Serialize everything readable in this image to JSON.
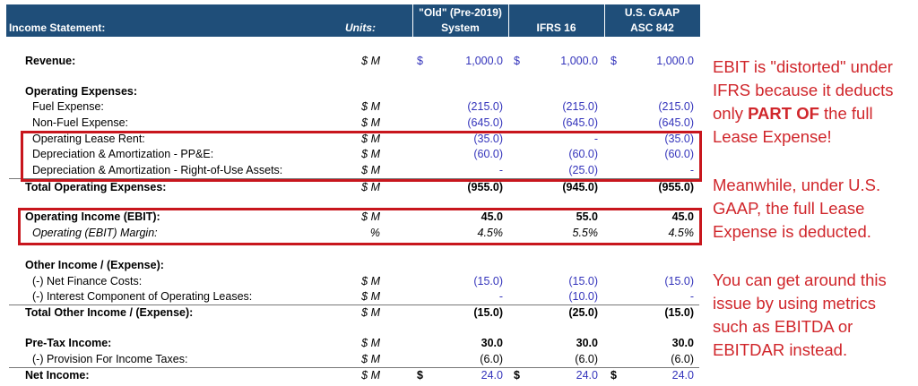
{
  "header": {
    "title": "Income Statement:",
    "units": "Units:",
    "col1_line1": "\"Old\" (Pre-2019)",
    "col1_line2": "System",
    "col2": "IFRS 16",
    "col3_line1": "U.S. GAAP",
    "col3_line2": "ASC 842"
  },
  "rows": [
    {
      "label": "Revenue:",
      "units": "$ M",
      "values": [
        "1,000.0",
        "1,000.0",
        "1,000.0"
      ],
      "currency": "$",
      "style": "rev"
    },
    {
      "label": "Operating Expenses:",
      "style": "head"
    },
    {
      "label": "Fuel Expense:",
      "units": "$ M",
      "values": [
        "(215.0)",
        "(215.0)",
        "(215.0)"
      ],
      "style": "item"
    },
    {
      "label": "Non-Fuel Expense:",
      "units": "$ M",
      "values": [
        "(645.0)",
        "(645.0)",
        "(645.0)"
      ],
      "style": "item"
    },
    {
      "label": "Operating Lease Rent:",
      "units": "$ M",
      "values": [
        "(35.0)",
        "-",
        "(35.0)"
      ],
      "style": "item"
    },
    {
      "label": "Depreciation & Amortization - PP&E:",
      "units": "$ M",
      "values": [
        "(60.0)",
        "(60.0)",
        "(60.0)"
      ],
      "style": "item"
    },
    {
      "label": "Depreciation & Amortization - Right-of-Use Assets:",
      "units": "$ M",
      "values": [
        "-",
        "(25.0)",
        "-"
      ],
      "style": "item",
      "underline": true
    },
    {
      "label": "Total Operating Expenses:",
      "units": "$ M",
      "values": [
        "(955.0)",
        "(945.0)",
        "(955.0)"
      ],
      "style": "tot"
    },
    {
      "label": "Operating Income (EBIT):",
      "units": "$ M",
      "values": [
        "45.0",
        "55.0",
        "45.0"
      ],
      "style": "bold"
    },
    {
      "label": "Operating (EBIT) Margin:",
      "units": "%",
      "values": [
        "4.5%",
        "5.5%",
        "4.5%"
      ],
      "style": "ital"
    },
    {
      "label": "Other Income / (Expense):",
      "style": "head"
    },
    {
      "label": "(-) Net Finance Costs:",
      "units": "$ M",
      "values": [
        "(15.0)",
        "(15.0)",
        "(15.0)"
      ],
      "style": "item"
    },
    {
      "label": "(-) Interest Component of Operating Leases:",
      "units": "$ M",
      "values": [
        "-",
        "(10.0)",
        "-"
      ],
      "style": "item",
      "underline": true
    },
    {
      "label": "Total Other Income / (Expense):",
      "units": "$ M",
      "values": [
        "(15.0)",
        "(25.0)",
        "(15.0)"
      ],
      "style": "tot"
    },
    {
      "label": "Pre-Tax Income:",
      "units": "$ M",
      "values": [
        "30.0",
        "30.0",
        "30.0"
      ],
      "style": "bold"
    },
    {
      "label": "(-) Provision For Income Taxes:",
      "units": "$ M",
      "values": [
        "(6.0)",
        "(6.0)",
        "(6.0)"
      ],
      "style": "plain",
      "underline": true
    },
    {
      "label": "Net Income:",
      "units": "$ M",
      "values": [
        "24.0",
        "24.0",
        "24.0"
      ],
      "currency": "$",
      "style": "net"
    }
  ],
  "note": {
    "p1": [
      "EBIT is \"distorted\" under",
      "IFRS because it deducts"
    ],
    "p1_pre": "only ",
    "p1_bold": "PART OF",
    "p1_post": " the full",
    "p1_end": "Lease Expense!",
    "p2": [
      "Meanwhile, under U.S.",
      "GAAP, the full Lease",
      "Expense is deducted."
    ],
    "p3": [
      "You can get around this",
      "issue by using metrics",
      "such as EBITDA or",
      "EBITDAR instead."
    ]
  },
  "colors": {
    "header": "#1f4e79",
    "highlight": "#c8161d",
    "note": "#d0262b",
    "input": "#3333bb"
  }
}
